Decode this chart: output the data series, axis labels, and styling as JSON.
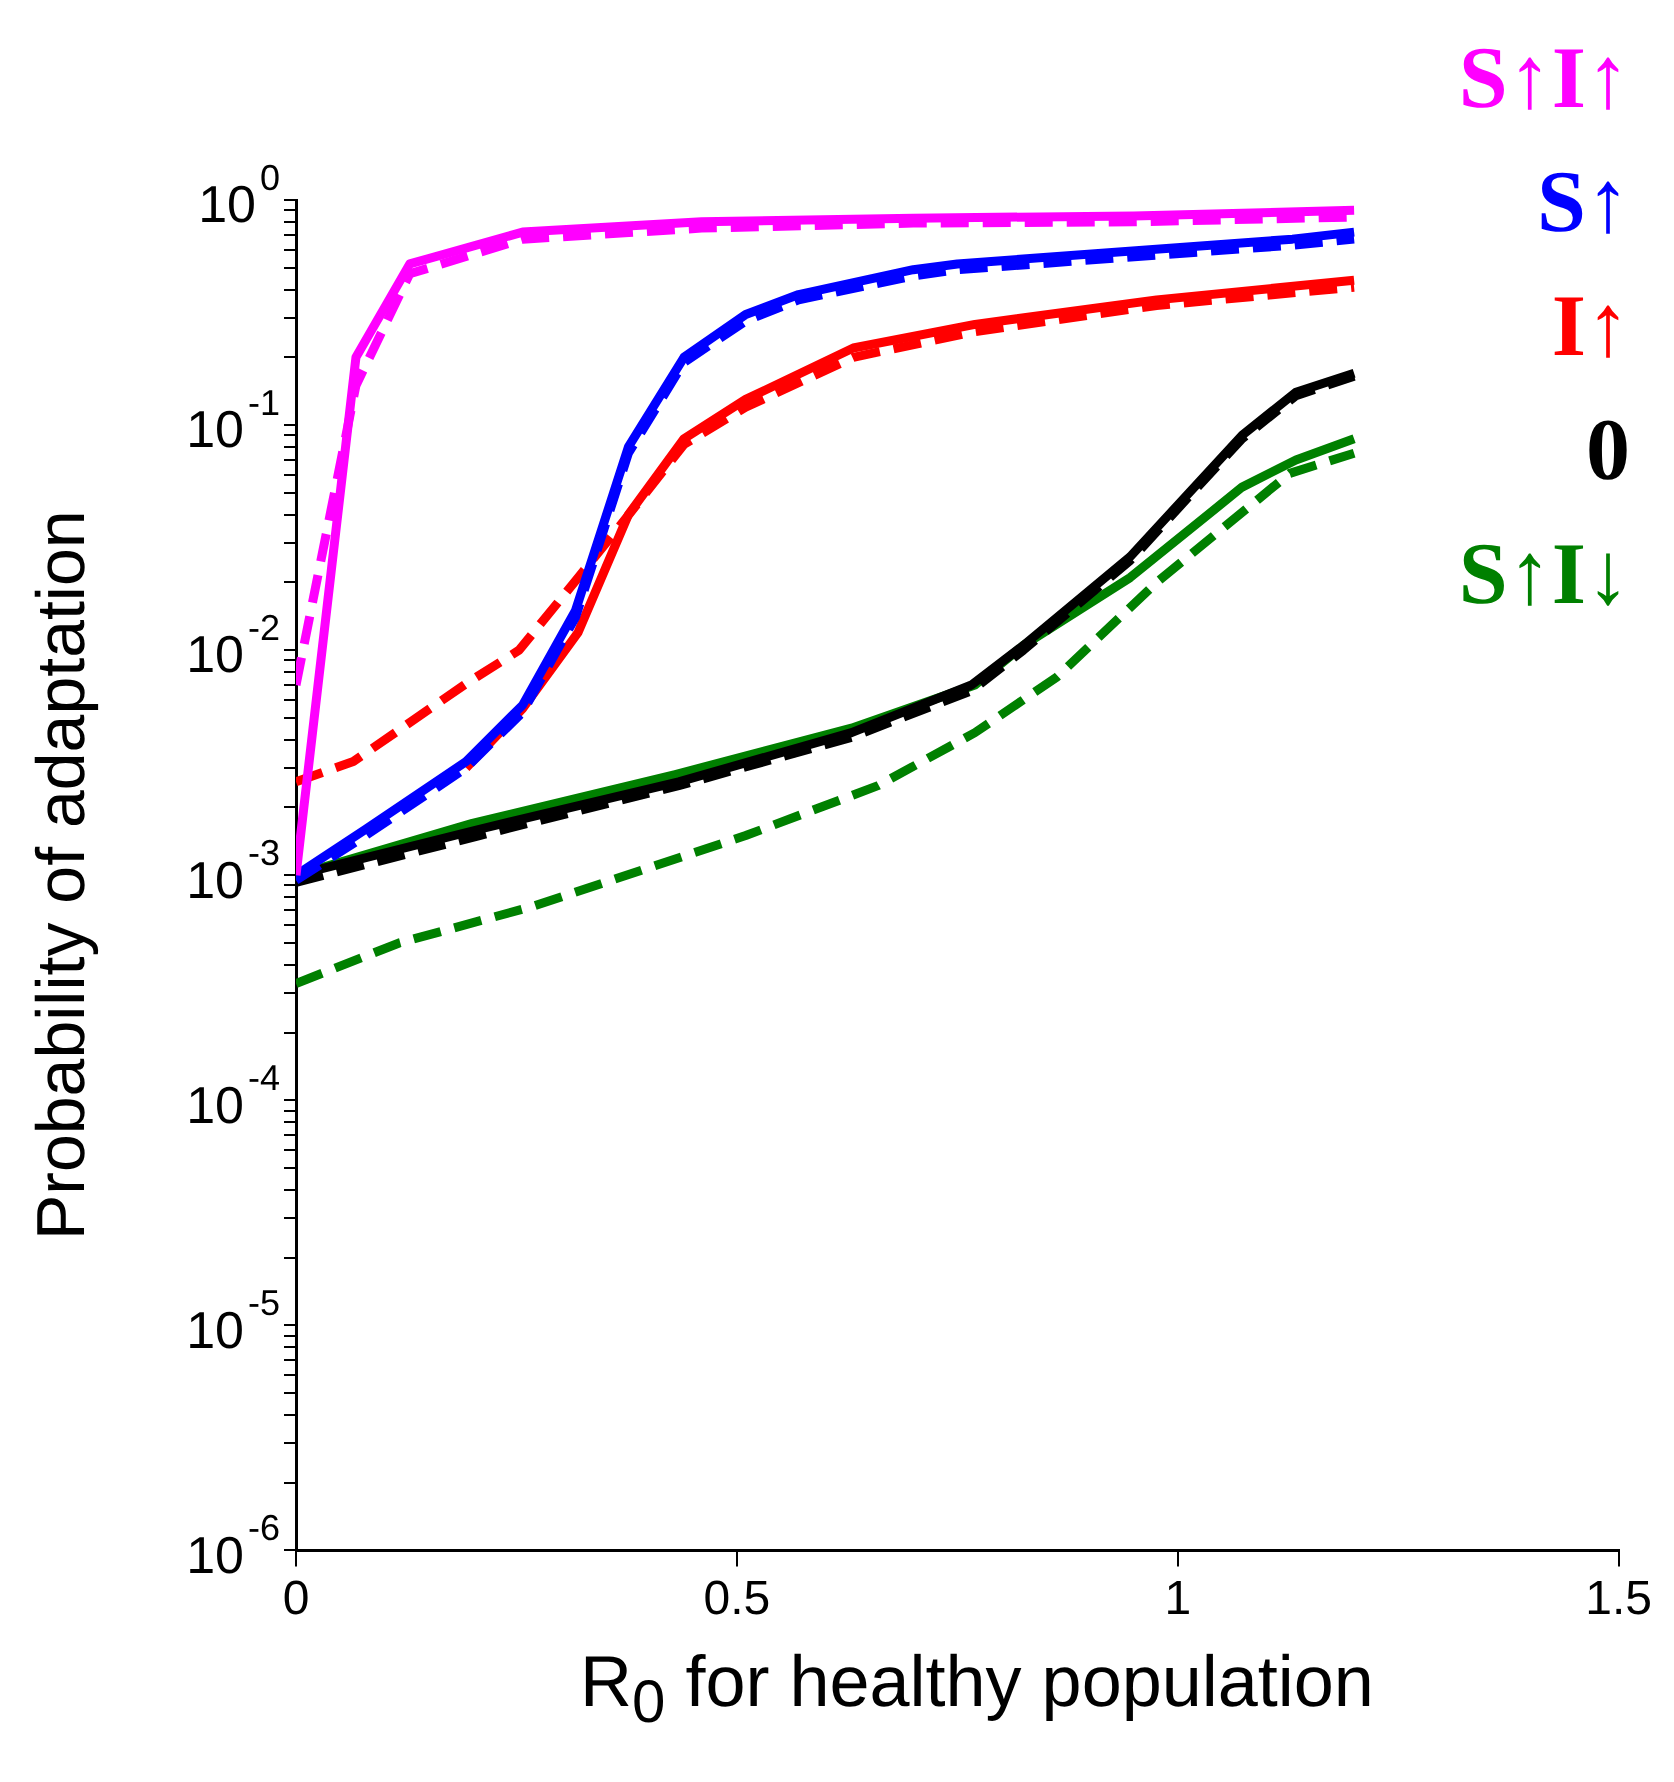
{
  "chart_data": {
    "type": "line",
    "xlabel": "R$_{0}$ for healthy population",
    "ylabel": "Probability of adaptation",
    "log": "y",
    "xlim": [
      0,
      1.5
    ],
    "xticks": [
      0,
      0.5,
      1,
      1.5
    ],
    "ylim": [
      1e-06,
      1
    ],
    "yticks": [
      {
        "value": 1e-06,
        "label": "10$^{-6}$"
      },
      {
        "value": 2e-06,
        "label": null
      },
      {
        "value": 3e-06,
        "label": null
      },
      {
        "value": 4e-06,
        "label": null
      },
      {
        "value": 5e-06,
        "label": null
      },
      {
        "value": 6e-06,
        "label": null
      },
      {
        "value": 7e-06,
        "label": null
      },
      {
        "value": 8e-06,
        "label": null
      },
      {
        "value": 9e-06,
        "label": null
      },
      {
        "value": 1e-05,
        "label": "10$^{-5}$"
      },
      {
        "value": 2e-05,
        "label": null
      },
      {
        "value": 3e-05,
        "label": null
      },
      {
        "value": 4e-05,
        "label": null
      },
      {
        "value": 5e-05,
        "label": null
      },
      {
        "value": 6e-05,
        "label": null
      },
      {
        "value": 7e-05,
        "label": null
      },
      {
        "value": 8e-05,
        "label": null
      },
      {
        "value": 9e-05,
        "label": null
      },
      {
        "value": 0.0001,
        "label": "10$^{-4}$"
      },
      {
        "value": 0.0002,
        "label": null
      },
      {
        "value": 0.0003,
        "label": null
      },
      {
        "value": 0.0004,
        "label": null
      },
      {
        "value": 0.0005,
        "label": null
      },
      {
        "value": 0.0006,
        "label": null
      },
      {
        "value": 0.0007,
        "label": null
      },
      {
        "value": 0.0008,
        "label": null
      },
      {
        "value": 0.0009,
        "label": null
      },
      {
        "value": 0.001,
        "label": "10$^{-3}$"
      },
      {
        "value": 0.002,
        "label": null
      },
      {
        "value": 0.003,
        "label": null
      },
      {
        "value": 0.004,
        "label": null
      },
      {
        "value": 0.005,
        "label": null
      },
      {
        "value": 0.006,
        "label": null
      },
      {
        "value": 0.007,
        "label": null
      },
      {
        "value": 0.008,
        "label": null
      },
      {
        "value": 0.009,
        "label": null
      },
      {
        "value": 0.01,
        "label": "10$^{-2}$"
      },
      {
        "value": 0.02,
        "label": null
      },
      {
        "value": 0.03,
        "label": null
      },
      {
        "value": 0.04,
        "label": null
      },
      {
        "value": 0.05,
        "label": null
      },
      {
        "value": 0.06,
        "label": null
      },
      {
        "value": 0.07,
        "label": null
      },
      {
        "value": 0.08,
        "label": null
      },
      {
        "value": 0.09,
        "label": null
      },
      {
        "value": 0.1,
        "label": "10$^{-1}$"
      },
      {
        "value": 0.2,
        "label": null
      },
      {
        "value": 0.3,
        "label": null
      },
      {
        "value": 0.4,
        "label": null
      },
      {
        "value": 0.5,
        "label": null
      },
      {
        "value": 0.6,
        "label": null
      },
      {
        "value": 0.7,
        "label": null
      },
      {
        "value": 0.8,
        "label": null
      },
      {
        "value": 0.9,
        "label": null
      },
      {
        "value": 1,
        "label": "10$^{0}$"
      }
    ],
    "series": [
      {
        "name": "S↑I↑",
        "color": "#ff00ff",
        "line_style": "solid",
        "x": [
          0,
          0.068,
          0.129,
          0.257,
          0.46,
          0.7,
          0.95,
          1.2
        ],
        "values": [
          0.001,
          0.2,
          0.52,
          0.72,
          0.8,
          0.83,
          0.85,
          0.9
        ]
      },
      {
        "color": "#ff00ff",
        "line_style": "dashed",
        "x": [
          0,
          0.068,
          0.129,
          0.257,
          0.46,
          0.7,
          0.95,
          1.2
        ],
        "values": [
          0.007,
          0.15,
          0.47,
          0.67,
          0.75,
          0.79,
          0.8,
          0.84
        ]
      },
      {
        "name": "S↑",
        "color": "#0000ff",
        "line_style": "solid",
        "x": [
          0,
          0.079,
          0.193,
          0.257,
          0.317,
          0.377,
          0.44,
          0.51,
          0.57,
          0.7,
          0.75,
          1.13,
          1.2
        ],
        "values": [
          0.001,
          0.0016,
          0.0032,
          0.0057,
          0.015,
          0.08,
          0.2,
          0.31,
          0.38,
          0.49,
          0.52,
          0.67,
          0.72
        ]
      },
      {
        "color": "#0000ff",
        "line_style": "dashed",
        "x": [
          0,
          0.079,
          0.193,
          0.257,
          0.317,
          0.377,
          0.44,
          0.51,
          0.57,
          0.7,
          0.75,
          1.13,
          1.2
        ],
        "values": [
          0.00095,
          0.0015,
          0.003,
          0.0053,
          0.014,
          0.075,
          0.19,
          0.29,
          0.36,
          0.46,
          0.49,
          0.63,
          0.67
        ]
      },
      {
        "name": "I↑",
        "color": "#ff0000",
        "line_style": "solid",
        "x": [
          0.193,
          0.257,
          0.32,
          0.377,
          0.44,
          0.51,
          0.632,
          0.77,
          0.976,
          1.2
        ],
        "values": [
          0.003,
          0.0055,
          0.012,
          0.04,
          0.087,
          0.13,
          0.22,
          0.28,
          0.36,
          0.44
        ]
      },
      {
        "color": "#ff0000",
        "line_style": "dashed",
        "x": [
          0,
          0.065,
          0.193,
          0.253,
          0.32,
          0.373,
          0.44,
          0.51,
          0.632,
          0.77,
          0.976,
          1.2
        ],
        "values": [
          0.0026,
          0.0032,
          0.0071,
          0.01,
          0.021,
          0.038,
          0.082,
          0.12,
          0.2,
          0.26,
          0.34,
          0.41
        ]
      },
      {
        "name": "0",
        "color": "#000000",
        "line_style": "solid",
        "x": [
          0,
          0.208,
          0.434,
          0.63,
          0.766,
          0.825,
          0.946,
          1.073,
          1.134,
          1.2
        ],
        "values": [
          0.001,
          0.0016,
          0.0026,
          0.0043,
          0.007,
          0.0105,
          0.026,
          0.09,
          0.14,
          0.17
        ]
      },
      {
        "color": "#000000",
        "line_style": "dashed",
        "x": [
          0,
          0.208,
          0.434,
          0.63,
          0.766,
          0.825,
          0.946,
          1.073,
          1.134,
          1.2
        ],
        "values": [
          0.00093,
          0.0015,
          0.0025,
          0.0041,
          0.0066,
          0.01,
          0.025,
          0.087,
          0.135,
          0.165
        ]
      },
      {
        "name": "S↑I↓",
        "color": "#008000",
        "line_style": "solid",
        "x": [
          0,
          0.2,
          0.43,
          0.63,
          0.77,
          0.825,
          0.946,
          1.073,
          1.134,
          1.2
        ],
        "values": [
          0.001,
          0.0017,
          0.0028,
          0.0045,
          0.007,
          0.0105,
          0.021,
          0.053,
          0.07,
          0.087
        ]
      },
      {
        "color": "#008000",
        "line_style": "dashed",
        "x": [
          0,
          0.117,
          0.27,
          0.51,
          0.66,
          0.77,
          0.863,
          0.976,
          1.127,
          1.2
        ],
        "values": [
          0.00033,
          0.0005,
          0.00073,
          0.0015,
          0.0025,
          0.0043,
          0.0076,
          0.02,
          0.061,
          0.075
        ]
      }
    ]
  }
}
